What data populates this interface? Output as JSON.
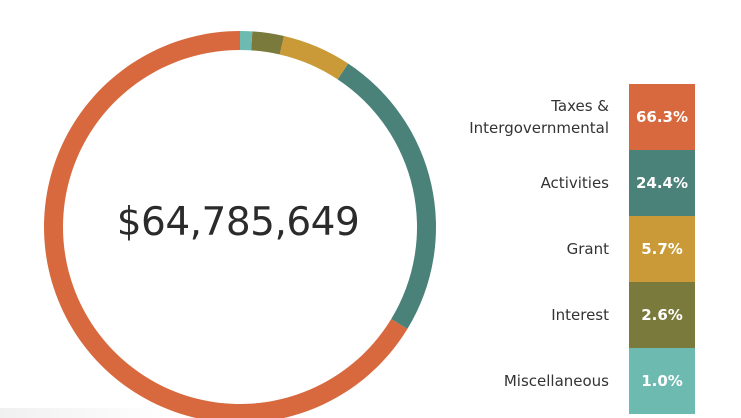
{
  "chart_data": {
    "type": "pie",
    "subtype": "donut",
    "center_label": "$64,785,649",
    "slices": [
      {
        "label": "Taxes &\nIntergovernmental",
        "value": 66.3,
        "value_label": "66.3%",
        "color": "#d8693e"
      },
      {
        "label": "Activities",
        "value": 24.4,
        "value_label": "24.4%",
        "color": "#4a8279"
      },
      {
        "label": "Grant",
        "value": 5.7,
        "value_label": "5.7%",
        "color": "#c99a37"
      },
      {
        "label": "Interest",
        "value": 2.6,
        "value_label": "2.6%",
        "color": "#7a7a3d"
      },
      {
        "label": "Miscellaneous",
        "value": 1.0,
        "value_label": "1.0%",
        "color": "#6cbab0"
      }
    ],
    "legend_position": "right"
  }
}
